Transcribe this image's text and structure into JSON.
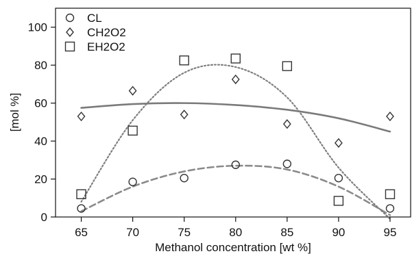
{
  "chart_data": {
    "type": "scatter",
    "xlabel": "Methanol concentration [wt %]",
    "ylabel": "[mol %]",
    "xlim": [
      62.5,
      97
    ],
    "ylim": [
      0,
      110
    ],
    "xticks": [
      65,
      70,
      75,
      80,
      85,
      90,
      95
    ],
    "yticks": [
      0,
      20,
      40,
      60,
      80,
      100
    ],
    "grid": false,
    "legend_position": "top-left",
    "series": [
      {
        "name": "CL",
        "marker": "circle",
        "x": [
          65,
          70,
          75,
          80,
          85,
          90,
          95
        ],
        "y": [
          4.5,
          18.5,
          20.5,
          27.5,
          28,
          20.5,
          4.5
        ]
      },
      {
        "name": "CH2O2",
        "marker": "diamond",
        "x": [
          65,
          70,
          75,
          80,
          85,
          90,
          95
        ],
        "y": [
          53,
          66.5,
          54,
          72.5,
          49,
          39,
          53
        ]
      },
      {
        "name": "EH2O2",
        "marker": "square",
        "x": [
          65,
          70,
          75,
          80,
          85,
          90,
          95
        ],
        "y": [
          12,
          45.5,
          82.5,
          83.5,
          79.5,
          8.5,
          12
        ]
      }
    ],
    "trendlines": [
      {
        "for": "CL",
        "style": "dashed",
        "x": [
          65,
          70,
          75,
          80,
          85,
          90,
          95
        ],
        "y": [
          3,
          16,
          24,
          27,
          25,
          16,
          1
        ]
      },
      {
        "for": "CH2O2",
        "style": "solid",
        "x": [
          65,
          70,
          75,
          80,
          85,
          90,
          95
        ],
        "y": [
          57.5,
          59.5,
          60,
          59,
          56.5,
          52,
          45
        ]
      },
      {
        "for": "EH2O2",
        "style": "dotted",
        "x": [
          65,
          70,
          75,
          80,
          85,
          90,
          95
        ],
        "y": [
          8,
          51,
          76,
          79,
          63,
          26,
          -1
        ]
      }
    ]
  }
}
